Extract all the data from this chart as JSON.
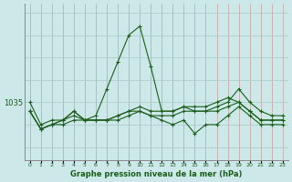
{
  "title": "Graphe pression niveau de la mer (hPa)",
  "background_color": "#cce8e8",
  "grid_color_v": "#c8a8a8",
  "grid_color_h": "#aac8c8",
  "line_color": "#1a5e1a",
  "x_labels": [
    "0",
    "1",
    "2",
    "3",
    "4",
    "5",
    "6",
    "7",
    "8",
    "9",
    "10",
    "11",
    "12",
    "13",
    "14",
    "15",
    "16",
    "17",
    "18",
    "19",
    "20",
    "21",
    "22",
    "23"
  ],
  "ytick_label": "1035",
  "ytick_value": 1035,
  "series": [
    [
      1035,
      1030,
      1031,
      1031,
      1033,
      1031,
      1032,
      1038,
      1044,
      1050,
      1052,
      1043,
      1033,
      1033,
      1034,
      1033,
      1033,
      1034,
      1035,
      1038,
      1035,
      1033,
      1032,
      1032
    ],
    [
      1033,
      1029,
      1030,
      1031,
      1033,
      1031,
      1031,
      1031,
      1032,
      1033,
      1034,
      1033,
      1033,
      1033,
      1034,
      1034,
      1034,
      1035,
      1036,
      1035,
      1033,
      1031,
      1031,
      1031
    ],
    [
      1033,
      1029,
      1030,
      1030,
      1031,
      1031,
      1031,
      1031,
      1032,
      1033,
      1033,
      1032,
      1031,
      1030,
      1031,
      1028,
      1030,
      1030,
      1032,
      1034,
      1032,
      1030,
      1030,
      1030
    ],
    [
      1033,
      1029,
      1030,
      1031,
      1032,
      1031,
      1031,
      1031,
      1031,
      1032,
      1033,
      1032,
      1032,
      1032,
      1033,
      1033,
      1033,
      1033,
      1034,
      1035,
      1033,
      1031,
      1031,
      1031
    ]
  ],
  "ylim_min": 1022,
  "ylim_max": 1057
}
